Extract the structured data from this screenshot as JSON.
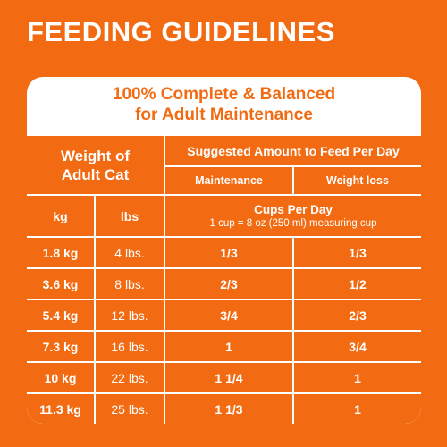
{
  "page_title": "FEEDING GUIDELINES",
  "card": {
    "header_line1": "100% Complete & Balanced",
    "header_line2": "for Adult Maintenance"
  },
  "table": {
    "weight_header": "Weight of Adult Cat",
    "weight_header_l1": "Weight of",
    "weight_header_l2": "Adult Cat",
    "suggested_header": "Suggested Amount to Feed Per Day",
    "maintenance_header": "Maintenance",
    "weightloss_header": "Weight loss",
    "kg_header": "kg",
    "lbs_header": "lbs",
    "cups_title": "Cups Per Day",
    "cups_subtitle": "1 cup = 8 oz (250 ml) measuring cup",
    "rows": [
      {
        "kg": "1.8 kg",
        "lbs": "4 lbs.",
        "maintenance": "1/3",
        "weight_loss": "1/3"
      },
      {
        "kg": "3.6 kg",
        "lbs": "8 lbs.",
        "maintenance": "2/3",
        "weight_loss": "1/2"
      },
      {
        "kg": "5.4 kg",
        "lbs": "12 lbs.",
        "maintenance": "3/4",
        "weight_loss": "2/3"
      },
      {
        "kg": "7.3 kg",
        "lbs": "16 lbs.",
        "maintenance": "1",
        "weight_loss": "3/4"
      },
      {
        "kg": "10 kg",
        "lbs": "22 lbs.",
        "maintenance": "1 1/4",
        "weight_loss": "1"
      },
      {
        "kg": "11.3 kg",
        "lbs": "25 lbs.",
        "maintenance": "1 1/3",
        "weight_loss": "1"
      }
    ]
  },
  "colors": {
    "brand_orange": "#f26b12",
    "white": "#ffffff"
  }
}
